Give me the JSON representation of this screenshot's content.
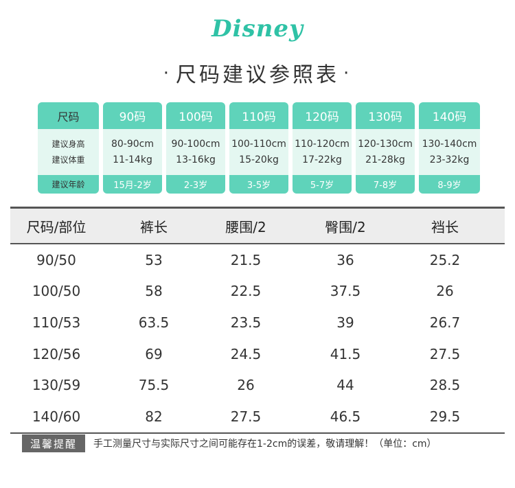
{
  "logo": "Disney",
  "title": "尺码建议参照表",
  "title_dot": "·",
  "size_chart": {
    "label_column": {
      "size": "尺码",
      "height": "建议身高",
      "weight": "建议体重",
      "age": "建议年龄"
    },
    "columns": [
      {
        "size": "90码",
        "height": "80-90cm",
        "weight": "11-14kg",
        "age": "15月-2岁"
      },
      {
        "size": "100码",
        "height": "90-100cm",
        "weight": "13-16kg",
        "age": "2-3岁"
      },
      {
        "size": "110码",
        "height": "100-110cm",
        "weight": "15-20kg",
        "age": "3-5岁"
      },
      {
        "size": "120码",
        "height": "110-120cm",
        "weight": "17-22kg",
        "age": "5-7岁"
      },
      {
        "size": "130码",
        "height": "120-130cm",
        "weight": "21-28kg",
        "age": "7-8岁"
      },
      {
        "size": "140码",
        "height": "130-140cm",
        "weight": "23-32kg",
        "age": "8-9岁"
      }
    ]
  },
  "measure_table": {
    "headers": [
      "尺码/部位",
      "裤长",
      "腰围/2",
      "臀围/2",
      "裆长"
    ],
    "rows": [
      [
        "90/50",
        "53",
        "21.5",
        "36",
        "25.2"
      ],
      [
        "100/50",
        "58",
        "22.5",
        "37.5",
        "26"
      ],
      [
        "110/53",
        "63.5",
        "23.5",
        "39",
        "26.7"
      ],
      [
        "120/56",
        "69",
        "24.5",
        "41.5",
        "27.5"
      ],
      [
        "130/59",
        "75.5",
        "26",
        "44",
        "28.5"
      ],
      [
        "140/60",
        "82",
        "27.5",
        "46.5",
        "29.5"
      ]
    ]
  },
  "note": {
    "badge": "温馨提醒",
    "text": "手工测量尺寸与实际尺寸之间可能存在1-2cm的误差，敬请理解！（单位：cm）"
  },
  "colors": {
    "accent": "#5fd3ba",
    "accent_light": "#e4f7f1",
    "logo": "#2fc2a6"
  }
}
